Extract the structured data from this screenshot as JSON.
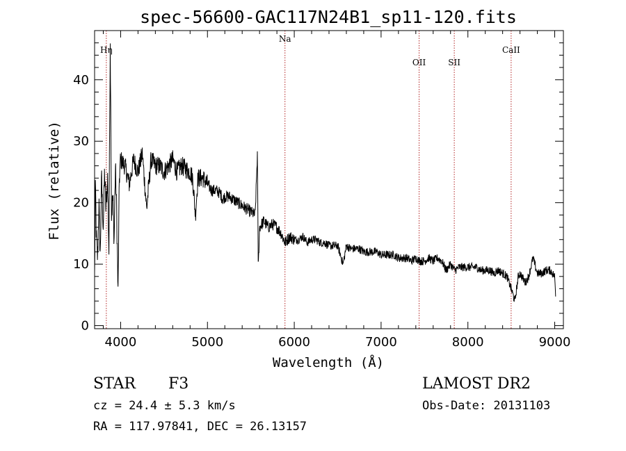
{
  "chart_data": {
    "type": "line",
    "title": "spec-56600-GAC117N24B1_sp11-120.fits",
    "xlabel": "Wavelength (Å)",
    "ylabel": "Flux (relative)",
    "xlim": [
      3700,
      9100
    ],
    "ylim": [
      -0.5,
      48
    ],
    "xticks": [
      4000,
      5000,
      6000,
      7000,
      8000,
      9000
    ],
    "yticks": [
      0,
      10,
      20,
      30,
      40
    ],
    "grid": false,
    "series_color": "#000000",
    "marker_color": "#b22222",
    "lines": [
      {
        "label": "Hη",
        "wavelength": 3835
      },
      {
        "label": "Na",
        "wavelength": 5893
      },
      {
        "label": "OII",
        "wavelength": 7438
      },
      {
        "label": "SII",
        "wavelength": 7843
      },
      {
        "label": "CaII",
        "wavelength": 8498
      }
    ],
    "anchors": [
      [
        3700,
        8
      ],
      [
        3710,
        23
      ],
      [
        3720,
        14
      ],
      [
        3735,
        11
      ],
      [
        3750,
        20
      ],
      [
        3765,
        11
      ],
      [
        3780,
        24
      ],
      [
        3800,
        16
      ],
      [
        3815,
        25
      ],
      [
        3830,
        19
      ],
      [
        3850,
        24
      ],
      [
        3865,
        12
      ],
      [
        3880,
        47
      ],
      [
        3895,
        18
      ],
      [
        3910,
        21
      ],
      [
        3925,
        14
      ],
      [
        3940,
        26
      ],
      [
        3955,
        18
      ],
      [
        3970,
        5
      ],
      [
        3985,
        24
      ],
      [
        4000,
        27
      ],
      [
        4050,
        26
      ],
      [
        4100,
        23
      ],
      [
        4150,
        27
      ],
      [
        4200,
        25
      ],
      [
        4250,
        28
      ],
      [
        4300,
        19
      ],
      [
        4350,
        27
      ],
      [
        4400,
        26
      ],
      [
        4450,
        26
      ],
      [
        4500,
        25
      ],
      [
        4550,
        26
      ],
      [
        4600,
        27
      ],
      [
        4650,
        25
      ],
      [
        4700,
        26
      ],
      [
        4750,
        25.5
      ],
      [
        4800,
        25
      ],
      [
        4830,
        24
      ],
      [
        4861,
        18
      ],
      [
        4890,
        24
      ],
      [
        4950,
        24
      ],
      [
        5000,
        23
      ],
      [
        5050,
        22
      ],
      [
        5100,
        22
      ],
      [
        5150,
        21.5
      ],
      [
        5175,
        20.5
      ],
      [
        5200,
        21
      ],
      [
        5250,
        21
      ],
      [
        5300,
        20.5
      ],
      [
        5350,
        20
      ],
      [
        5400,
        19.5
      ],
      [
        5450,
        19
      ],
      [
        5500,
        18.5
      ],
      [
        5550,
        18
      ],
      [
        5575,
        28
      ],
      [
        5585,
        9
      ],
      [
        5600,
        16
      ],
      [
        5650,
        17
      ],
      [
        5700,
        16
      ],
      [
        5750,
        16.5
      ],
      [
        5800,
        16
      ],
      [
        5850,
        15
      ],
      [
        5893,
        13.5
      ],
      [
        5950,
        14.5
      ],
      [
        6000,
        14
      ],
      [
        6050,
        14
      ],
      [
        6100,
        14.5
      ],
      [
        6150,
        13.5
      ],
      [
        6200,
        14
      ],
      [
        6250,
        14
      ],
      [
        6300,
        13.5
      ],
      [
        6350,
        13.5
      ],
      [
        6400,
        13
      ],
      [
        6450,
        13
      ],
      [
        6500,
        13
      ],
      [
        6563,
        10
      ],
      [
        6600,
        13
      ],
      [
        6650,
        12.5
      ],
      [
        6700,
        12.5
      ],
      [
        6750,
        12.5
      ],
      [
        6800,
        12
      ],
      [
        6850,
        12
      ],
      [
        6900,
        12
      ],
      [
        6950,
        12
      ],
      [
        7000,
        11.5
      ],
      [
        7050,
        11.5
      ],
      [
        7100,
        11.5
      ],
      [
        7150,
        11.5
      ],
      [
        7200,
        11
      ],
      [
        7250,
        11
      ],
      [
        7300,
        11
      ],
      [
        7350,
        10.5
      ],
      [
        7400,
        11
      ],
      [
        7450,
        10.5
      ],
      [
        7500,
        10.5
      ],
      [
        7550,
        11
      ],
      [
        7600,
        10.5
      ],
      [
        7650,
        11
      ],
      [
        7700,
        10.5
      ],
      [
        7750,
        9
      ],
      [
        7800,
        10
      ],
      [
        7850,
        9
      ],
      [
        7900,
        9.5
      ],
      [
        7950,
        9.5
      ],
      [
        8000,
        9.5
      ],
      [
        8050,
        9.5
      ],
      [
        8100,
        9.5
      ],
      [
        8150,
        9
      ],
      [
        8200,
        9
      ],
      [
        8250,
        9
      ],
      [
        8300,
        8.5
      ],
      [
        8350,
        9
      ],
      [
        8400,
        8.5
      ],
      [
        8450,
        8
      ],
      [
        8498,
        6
      ],
      [
        8542,
        4
      ],
      [
        8580,
        8
      ],
      [
        8600,
        8.5
      ],
      [
        8662,
        7
      ],
      [
        8700,
        8
      ],
      [
        8750,
        11
      ],
      [
        8800,
        8.5
      ],
      [
        8850,
        8.5
      ],
      [
        8900,
        9
      ],
      [
        8950,
        9
      ],
      [
        9000,
        8
      ],
      [
        9010,
        5
      ]
    ]
  },
  "footer": {
    "object_class": "STAR",
    "subclass": "F3",
    "survey": "LAMOST DR2",
    "redshift": "cz = 24.4 ± 5.3 km/s",
    "obs_date": "Obs-Date: 20131103",
    "coords": "RA = 117.97841, DEC =  26.13157"
  }
}
